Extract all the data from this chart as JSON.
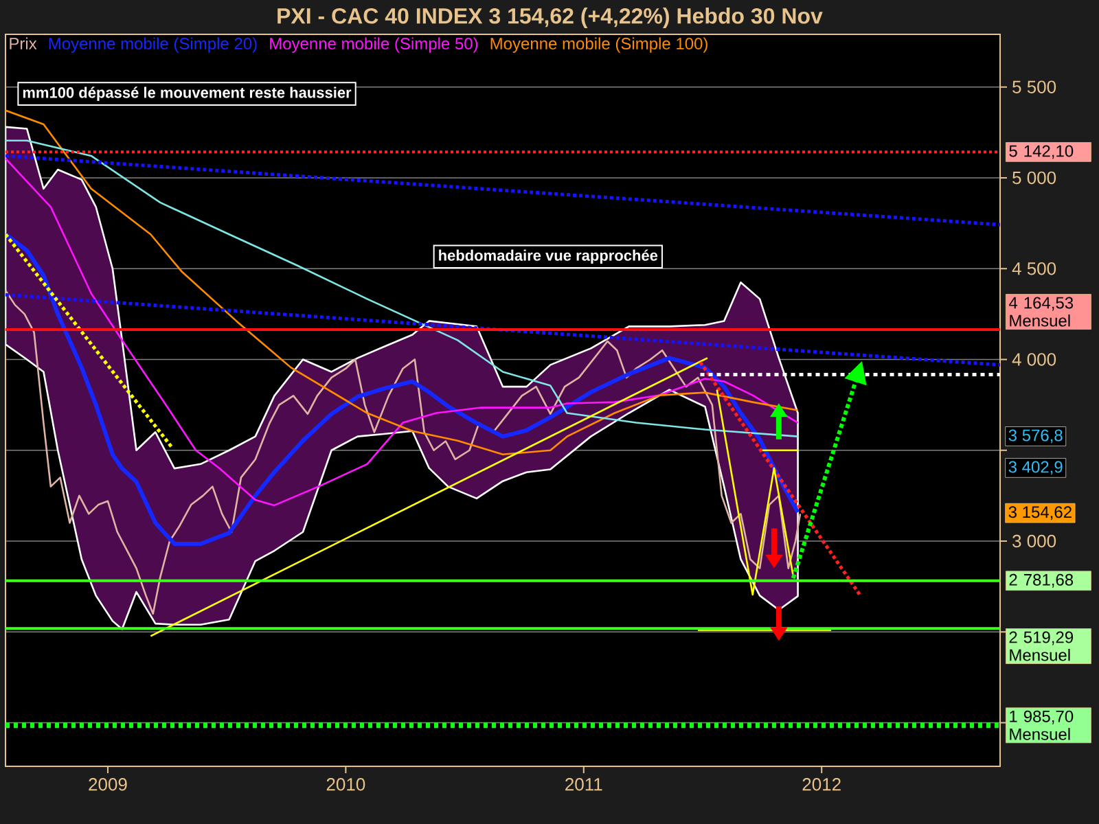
{
  "chart_data": {
    "type": "line",
    "title": "PXI - CAC 40 INDEX    3 154,62 (+4,22%)    Hebdo  30 Nov",
    "annotations": [
      "mm100 dépassé  le mouvement reste haussier",
      "hebdomadaire vue rapprochée",
      "3 576,8",
      "3 402,9",
      "3 154,62"
    ],
    "xlim": [
      2008.57,
      2012.75
    ],
    "ylim": [
      1760,
      5790
    ],
    "xticks": [
      2009,
      2010,
      2011,
      2012
    ],
    "yticks": [
      {
        "value": 2000,
        "label": null
      },
      {
        "value": 2500,
        "label": null
      },
      {
        "value": 3000,
        "label": "3 000"
      },
      {
        "value": 3500,
        "label": null
      },
      {
        "value": 4000,
        "label": "4 000"
      },
      {
        "value": 4500,
        "label": "4 500"
      },
      {
        "value": 5000,
        "label": "5 000"
      },
      {
        "value": 5500,
        "label": "5 500"
      }
    ],
    "grid": "y",
    "legend": "top left",
    "series": [
      {
        "name": "Prix",
        "color": "#e0b4a4",
        "x": [
          2008.57,
          2008.61,
          2008.65,
          2008.69,
          2008.73,
          2008.76,
          2008.8,
          2008.84,
          2008.88,
          2008.92,
          2008.96,
          2009.0,
          2009.04,
          2009.08,
          2009.12,
          2009.16,
          2009.19,
          2009.22,
          2009.26,
          2009.3,
          2009.35,
          2009.4,
          2009.44,
          2009.48,
          2009.52,
          2009.56,
          2009.62,
          2009.68,
          2009.72,
          2009.78,
          2009.84,
          2009.88,
          2009.94,
          2010.0,
          2010.04,
          2010.08,
          2010.12,
          2010.18,
          2010.24,
          2010.29,
          2010.33,
          2010.37,
          2010.42,
          2010.46,
          2010.52,
          2010.56,
          2010.62,
          2010.68,
          2010.74,
          2010.8,
          2010.86,
          2010.92,
          2010.98,
          2011.04,
          2011.1,
          2011.14,
          2011.18,
          2011.22,
          2011.28,
          2011.33,
          2011.38,
          2011.43,
          2011.48,
          2011.54,
          2011.58,
          2011.62,
          2011.66,
          2011.7,
          2011.74,
          2011.78,
          2011.82,
          2011.86,
          2011.89,
          2011.91
        ],
        "values": [
          4380,
          4300,
          4250,
          4150,
          3650,
          3300,
          3350,
          3100,
          3250,
          3150,
          3200,
          3220,
          3050,
          2950,
          2850,
          2700,
          2600,
          2800,
          3000,
          3080,
          3200,
          3250,
          3300,
          3150,
          3050,
          3350,
          3450,
          3650,
          3750,
          3800,
          3700,
          3800,
          3900,
          3950,
          4000,
          3750,
          3600,
          3800,
          3950,
          4000,
          3600,
          3500,
          3550,
          3450,
          3500,
          3650,
          3600,
          3700,
          3800,
          3850,
          3700,
          3850,
          3900,
          4000,
          4100,
          4050,
          3900,
          3950,
          4000,
          4050,
          3950,
          3850,
          3900,
          3750,
          3250,
          3100,
          3150,
          2900,
          2850,
          3200,
          3250,
          2850,
          3000,
          3150
        ]
      },
      {
        "name": "Moyenne mobile (Simple 20)",
        "color": "#1428ff",
        "x": [
          2008.57,
          2008.66,
          2008.73,
          2008.79,
          2008.89,
          2008.95,
          2009.02,
          2009.06,
          2009.12,
          2009.2,
          2009.28,
          2009.39,
          2009.51,
          2009.62,
          2009.7,
          2009.82,
          2009.94,
          2010.05,
          2010.16,
          2010.28,
          2010.35,
          2010.43,
          2010.55,
          2010.66,
          2010.76,
          2010.86,
          2011.03,
          2011.19,
          2011.36,
          2011.51,
          2011.59,
          2011.66,
          2011.74,
          2011.82,
          2011.9
        ],
        "values": [
          4690,
          4600,
          4462,
          4250,
          3955,
          3750,
          3477,
          3400,
          3326,
          3100,
          2985,
          2985,
          3045,
          3250,
          3380,
          3553,
          3700,
          3795,
          3840,
          3879,
          3820,
          3742,
          3650,
          3576,
          3610,
          3682,
          3820,
          3920,
          4008,
          3955,
          3850,
          3705,
          3560,
          3350,
          3159
        ],
        "upper": [
          5280,
          5270,
          4940,
          5045,
          4990,
          4840,
          4500,
          4106,
          3500,
          3600,
          3400,
          3424,
          3500,
          3576,
          3800,
          4000,
          3932,
          4008,
          4070,
          4136,
          4212,
          4200,
          4182,
          3850,
          3850,
          3970,
          4061,
          4182,
          4182,
          4190,
          4212,
          4424,
          4333,
          4008,
          3705
        ],
        "lower": [
          4083,
          4000,
          3932,
          3500,
          2900,
          2700,
          2560,
          2515,
          2720,
          2546,
          2540,
          2540,
          2568,
          2890,
          2947,
          3050,
          3500,
          3576,
          3590,
          3606,
          3402,
          3300,
          3235,
          3330,
          3379,
          3395,
          3576,
          3705,
          3833,
          3740,
          3300,
          2900,
          2700,
          2621,
          2697
        ]
      },
      {
        "name": "Moyenne mobile (Simple 50)",
        "color": "#ff14ff",
        "x": [
          2008.57,
          2008.76,
          2008.93,
          2009.06,
          2009.24,
          2009.37,
          2009.47,
          2009.62,
          2009.7,
          2009.89,
          2010.09,
          2010.24,
          2010.38,
          2010.57,
          2010.86,
          2010.93,
          2011.13,
          2011.32,
          2011.51,
          2011.59,
          2011.71,
          2011.9
        ],
        "values": [
          5106,
          4840,
          4364,
          4106,
          3758,
          3500,
          3400,
          3227,
          3197,
          3303,
          3424,
          3652,
          3705,
          3735,
          3735,
          3758,
          3765,
          3803,
          3894,
          3879,
          3803,
          3652
        ]
      },
      {
        "name": "Moyenne mobile (Simple 100)",
        "color": "#ff8c00",
        "x": [
          2008.57,
          2008.73,
          2008.93,
          2009.18,
          2009.31,
          2009.54,
          2009.77,
          2010.09,
          2010.28,
          2010.47,
          2010.66,
          2010.86,
          2010.93,
          2011.13,
          2011.32,
          2011.51,
          2011.71,
          2011.9
        ],
        "values": [
          5371,
          5295,
          4940,
          4689,
          4485,
          4212,
          3955,
          3705,
          3606,
          3553,
          3477,
          3500,
          3576,
          3705,
          3803,
          3818,
          3765,
          3720
        ]
      },
      {
        "color": "#7fe6e6",
        "x": [
          2008.57,
          2008.66,
          2008.93,
          2009.22,
          2009.51,
          2009.8,
          2010.09,
          2010.47,
          2010.66,
          2010.86,
          2010.93,
          2011.22,
          2011.51,
          2011.9
        ],
        "values": [
          5205,
          5205,
          5121,
          4864,
          4689,
          4515,
          4333,
          4106,
          3932,
          3856,
          3705,
          3652,
          3614,
          3576
        ]
      },
      {
        "color": "#1414ff",
        "line_style": "dotted",
        "x": [
          2008.57,
          2012.75
        ],
        "values": [
          5121,
          4742
        ]
      },
      {
        "color": "#1414ff",
        "line_style": "dotted",
        "x": [
          2008.57,
          2012.75
        ],
        "values": [
          4356,
          3970
        ]
      },
      {
        "color": "#ffff00",
        "line_style": "dotted",
        "x": [
          2008.57,
          2009.27
        ],
        "values": [
          4689,
          3515
        ]
      },
      {
        "color": "#ffff00",
        "x": [
          2009.18,
          2011.52
        ],
        "values": [
          2477,
          4008
        ]
      },
      {
        "color": "#ff2020",
        "line_style": "dotted",
        "x": [
          2011.49,
          2012.16
        ],
        "values": [
          3985,
          2705
        ]
      },
      {
        "color": "#ffff00",
        "x": [
          2011.56,
          2011.71,
          2011.8,
          2011.88
        ],
        "values": [
          3833,
          2705,
          3402,
          2811
        ]
      },
      {
        "color": "#ffff00",
        "x": [
          2011.75,
          2011.9
        ],
        "values": [
          3500,
          3500
        ]
      },
      {
        "color": "#ffff00",
        "x": [
          2011.48,
          2012.04
        ],
        "values": [
          2510,
          2510
        ]
      },
      {
        "color": "#ffffff",
        "line_style": "dashed",
        "x": [
          2011.49,
          2012.75
        ],
        "values": [
          3917,
          3917
        ]
      }
    ],
    "ref_lines": [
      {
        "axis": "y",
        "value": 5142.1,
        "label": "5 142,10",
        "color": "#ff2020",
        "line_style": "dotted"
      },
      {
        "axis": "y",
        "value": 4164.53,
        "label": "4 164,53 Mensuel",
        "color": "#ff1010",
        "line_style": "solid"
      },
      {
        "axis": "y",
        "value": 2781.68,
        "label": "2 781,68",
        "color": "#40ff20",
        "line_style": "solid"
      },
      {
        "axis": "y",
        "value": 2519.29,
        "label": "2 519,29 Mensuel",
        "color": "#40ff20",
        "line_style": "solid"
      },
      {
        "axis": "y",
        "value": 1985.7,
        "label": "1 985,70 Mensuel",
        "color": "#10ff10",
        "line_style": "dashed"
      }
    ]
  }
}
